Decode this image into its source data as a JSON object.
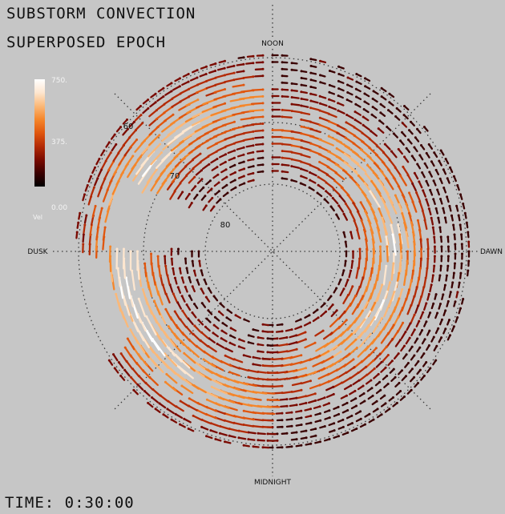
{
  "title_line1": "SUBSTORM CONVECTION",
  "title_line2": "SUPERPOSED EPOCH",
  "time_label": "TIME: 0:30:00",
  "directions": {
    "top": "NOON",
    "bottom": "MIDNIGHT",
    "left": "DUSK",
    "right": "DAWN"
  },
  "latitude_labels": [
    "60",
    "70",
    "80"
  ],
  "colorbar": {
    "max_label": "750.",
    "mid_label": "375.",
    "min_label": "0.00",
    "unit_label": "Vel",
    "min_value": 0,
    "max_value": 750,
    "colors": [
      "#000000",
      "#3a0000",
      "#7a0a00",
      "#b32a05",
      "#e0560e",
      "#f5862a",
      "#fbb878",
      "#fde6cf",
      "#ffffff"
    ]
  },
  "background_color": "#c6c6c6"
}
